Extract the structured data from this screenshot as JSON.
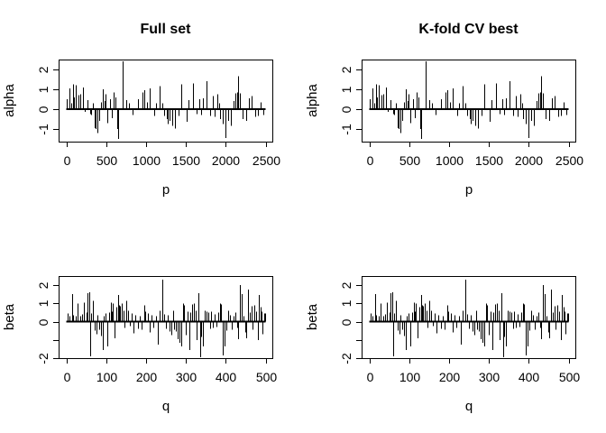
{
  "figure": {
    "background": "#ffffff",
    "foreground": "#000000",
    "column_titles": [
      "Full set",
      "K-fold CV best"
    ]
  },
  "chart_data": [
    {
      "type": "bar",
      "panel": "top-left",
      "title": "Full set",
      "xlabel": "p",
      "ylabel": "alpha",
      "x_ticks": [
        0,
        500,
        1000,
        1500,
        2000,
        2500
      ],
      "y_ticks": [
        -1,
        0,
        1,
        2
      ],
      "y_tick_labels": [
        "-1",
        "0",
        "1",
        "2"
      ],
      "xlim": [
        0,
        2500
      ],
      "ylim": [
        -1.64,
        2.5
      ],
      "grid": false,
      "series": "alpha"
    },
    {
      "type": "bar",
      "panel": "top-right",
      "title": "K-fold CV best",
      "xlabel": "p",
      "ylabel": "alpha",
      "x_ticks": [
        0,
        500,
        1000,
        1500,
        2000,
        2500
      ],
      "y_ticks": [
        -1,
        0,
        1,
        2
      ],
      "y_tick_labels": [
        "-1",
        "0",
        "1",
        "2"
      ],
      "xlim": [
        0,
        2500
      ],
      "ylim": [
        -1.64,
        2.5
      ],
      "grid": false,
      "series": "alpha"
    },
    {
      "type": "bar",
      "panel": "bottom-left",
      "title": "",
      "xlabel": "q",
      "ylabel": "beta",
      "x_ticks": [
        0,
        100,
        200,
        300,
        400,
        500
      ],
      "y_ticks": [
        -2,
        -1,
        0,
        1,
        2
      ],
      "y_tick_labels": [
        "-2",
        "",
        "0",
        "1",
        "2"
      ],
      "xlim": [
        0,
        500
      ],
      "ylim": [
        -2.0,
        2.5
      ],
      "grid": false,
      "series": "beta"
    },
    {
      "type": "bar",
      "panel": "bottom-right",
      "title": "",
      "xlabel": "q",
      "ylabel": "beta",
      "x_ticks": [
        0,
        100,
        200,
        300,
        400,
        500
      ],
      "y_ticks": [
        -2,
        -1,
        0,
        1,
        2
      ],
      "y_tick_labels": [
        "-2",
        "",
        "0",
        "1",
        "2"
      ],
      "xlim": [
        0,
        500
      ],
      "ylim": [
        -2.0,
        2.5
      ],
      "grid": false,
      "series": "beta"
    }
  ],
  "series": {
    "alpha": {
      "x": [
        10,
        35,
        60,
        85,
        100,
        122,
        148,
        175,
        205,
        232,
        270,
        296,
        312,
        330,
        352,
        368,
        392,
        414,
        433,
        457,
        478,
        492,
        516,
        546,
        576,
        596,
        621,
        638,
        656,
        705,
        754,
        790,
        837,
        894,
        955,
        975,
        1007,
        1048,
        1105,
        1130,
        1173,
        1200,
        1222,
        1258,
        1277,
        1300,
        1326,
        1368,
        1414,
        1445,
        1505,
        1531,
        1595,
        1632,
        1663,
        1689,
        1716,
        1764,
        1802,
        1840,
        1866,
        1900,
        1915,
        1934,
        1964,
        1991,
        2028,
        2067,
        2104,
        2126,
        2140,
        2150,
        2160,
        2172,
        2216,
        2254,
        2293,
        2330,
        2367,
        2405,
        2442,
        2468
      ],
      "values": [
        0.5,
        1.05,
        0.3,
        1.25,
        0.6,
        1.2,
        0.7,
        0.75,
        1.1,
        -0.15,
        0.45,
        -0.25,
        -0.3,
        0.3,
        -0.95,
        -1.0,
        -1.2,
        -0.6,
        0.35,
        1.0,
        0.4,
        0.75,
        -0.7,
        0.5,
        -0.45,
        0.85,
        0.6,
        -1.0,
        -1.5,
        2.4,
        0.45,
        0.3,
        -0.3,
        0.5,
        0.85,
        0.95,
        0.35,
        1.05,
        -0.35,
        0.3,
        1.15,
        0.3,
        -0.35,
        -0.5,
        -0.75,
        -0.6,
        -0.85,
        -0.97,
        -0.35,
        1.25,
        -0.65,
        0.45,
        1.3,
        -0.25,
        0.5,
        -0.3,
        0.55,
        1.4,
        -0.35,
        0.65,
        -0.4,
        0.75,
        0.3,
        -0.5,
        -0.75,
        -1.45,
        -0.6,
        -0.85,
        0.4,
        0.8,
        0.85,
        0.9,
        1.65,
        0.8,
        -0.5,
        -0.6,
        0.55,
        0.65,
        -0.4,
        -0.35,
        0.35,
        -0.3
      ]
    },
    "beta": {
      "x": [
        3,
        8,
        14,
        18,
        24,
        29,
        34,
        40,
        45,
        50,
        54,
        57,
        60,
        63,
        67,
        71,
        75,
        79,
        83,
        87,
        91,
        95,
        99,
        103,
        107,
        111,
        114,
        117,
        121,
        125,
        129,
        132,
        135,
        139,
        143,
        147,
        151,
        155,
        159,
        164,
        169,
        174,
        179,
        184,
        189,
        195,
        199,
        204,
        209,
        214,
        219,
        224,
        229,
        235,
        240,
        245,
        250,
        255,
        259,
        263,
        267,
        271,
        276,
        280,
        284,
        288,
        292,
        296,
        300,
        304,
        308,
        312,
        316,
        320,
        324,
        328,
        332,
        335,
        339,
        343,
        347,
        351,
        356,
        360,
        364,
        368,
        372,
        376,
        381,
        385,
        389,
        393,
        397,
        401,
        405,
        410,
        415,
        420,
        424,
        428,
        432,
        436,
        440,
        444,
        448,
        452,
        456,
        460,
        464,
        468,
        472,
        476,
        480,
        484,
        487,
        490,
        493,
        496,
        499
      ],
      "values": [
        0.45,
        0.3,
        1.5,
        0.35,
        0.3,
        1.0,
        0.3,
        0.4,
        1.05,
        0.5,
        1.55,
        1.6,
        -1.9,
        0.45,
        1.15,
        -0.5,
        -0.7,
        0.35,
        -0.45,
        -0.8,
        -1.55,
        0.3,
        0.45,
        -1.35,
        0.5,
        1.05,
        0.55,
        1.0,
        -0.9,
        0.8,
        1.45,
        0.9,
        0.85,
        1.0,
        0.6,
        -0.35,
        1.15,
        0.6,
        -0.25,
        0.45,
        -0.65,
        0.35,
        -0.4,
        0.3,
        -0.45,
        0.9,
        0.55,
        0.45,
        -0.6,
        0.35,
        -0.35,
        0.3,
        -1.25,
        0.6,
        2.3,
        0.4,
        -0.4,
        0.35,
        -0.55,
        -0.75,
        0.6,
        -0.45,
        -0.55,
        -0.95,
        -1.15,
        -1.35,
        1.0,
        0.9,
        -0.75,
        0.55,
        -1.55,
        0.5,
        0.95,
        1.0,
        0.6,
        -1.0,
        1.55,
        -1.95,
        -0.85,
        -1.35,
        0.6,
        0.55,
        0.5,
        -0.4,
        0.55,
        -0.35,
        0.4,
        -0.3,
        0.5,
        1.0,
        0.95,
        -1.85,
        -1.35,
        -0.5,
        0.6,
        0.35,
        -0.45,
        0.3,
        0.5,
        -0.35,
        -0.95,
        2.0,
        1.5,
        0.3,
        -0.6,
        -0.9,
        1.75,
        0.5,
        0.85,
        -0.45,
        0.9,
        0.55,
        -1.0,
        1.45,
        0.8,
        0.55,
        -0.7,
        0.45,
        0.45
      ]
    }
  }
}
